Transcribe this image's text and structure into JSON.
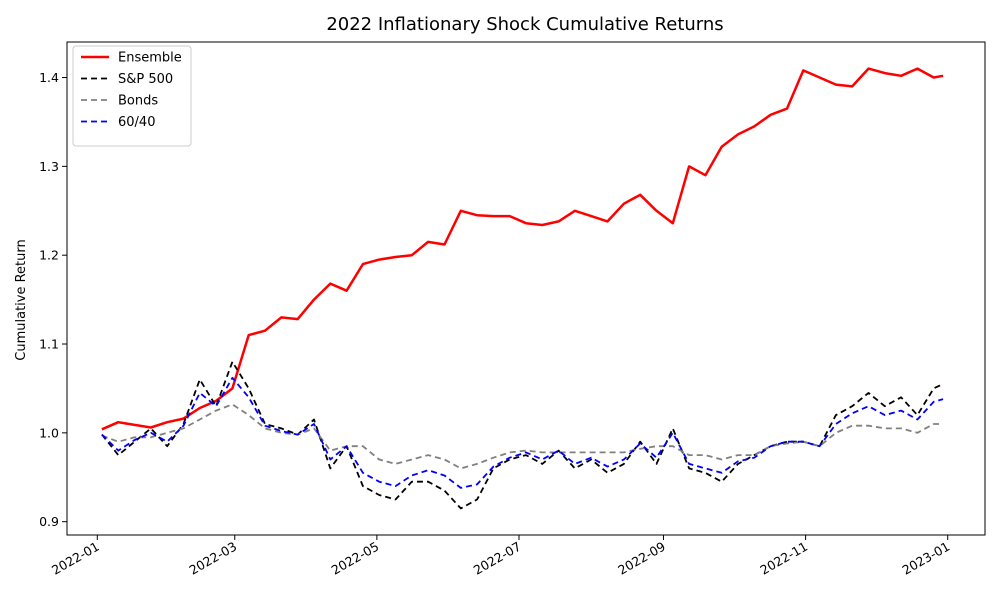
{
  "chart_data": {
    "type": "line",
    "title": "2022 Inflationary Shock Cumulative Returns",
    "xlabel": "",
    "ylabel": "Cumulative Return",
    "ylim": [
      0.885,
      1.44
    ],
    "xlim": [
      "2021-12-19",
      "2023-01-17"
    ],
    "grid": false,
    "legend_position": "upper-left",
    "x_ticks": [
      "2022-01",
      "2022-03",
      "2022-05",
      "2022-07",
      "2022-09",
      "2022-11",
      "2023-01"
    ],
    "y_ticks": [
      0.9,
      1.0,
      1.1,
      1.2,
      1.3,
      1.4
    ],
    "x": [
      "2022-01-03",
      "2022-01-10",
      "2022-01-17",
      "2022-01-24",
      "2022-01-31",
      "2022-02-07",
      "2022-02-14",
      "2022-02-21",
      "2022-02-28",
      "2022-03-07",
      "2022-03-14",
      "2022-03-21",
      "2022-03-28",
      "2022-04-04",
      "2022-04-11",
      "2022-04-18",
      "2022-04-25",
      "2022-05-02",
      "2022-05-09",
      "2022-05-16",
      "2022-05-23",
      "2022-05-30",
      "2022-06-06",
      "2022-06-13",
      "2022-06-20",
      "2022-06-27",
      "2022-07-04",
      "2022-07-11",
      "2022-07-18",
      "2022-07-25",
      "2022-08-01",
      "2022-08-08",
      "2022-08-15",
      "2022-08-22",
      "2022-08-29",
      "2022-09-05",
      "2022-09-12",
      "2022-09-19",
      "2022-09-26",
      "2022-10-03",
      "2022-10-10",
      "2022-10-17",
      "2022-10-24",
      "2022-10-31",
      "2022-11-07",
      "2022-11-14",
      "2022-11-21",
      "2022-11-28",
      "2022-12-05",
      "2022-12-12",
      "2022-12-19",
      "2022-12-26",
      "2022-12-30"
    ],
    "series": [
      {
        "name": "Ensemble",
        "color": "#ff0000",
        "dash": "solid",
        "width": 2.5,
        "values": [
          1.004,
          1.012,
          1.009,
          1.006,
          1.012,
          1.016,
          1.028,
          1.036,
          1.05,
          1.11,
          1.115,
          1.13,
          1.128,
          1.15,
          1.168,
          1.16,
          1.19,
          1.195,
          1.198,
          1.2,
          1.215,
          1.212,
          1.25,
          1.245,
          1.244,
          1.244,
          1.236,
          1.234,
          1.238,
          1.25,
          1.244,
          1.238,
          1.258,
          1.268,
          1.25,
          1.236,
          1.3,
          1.29,
          1.322,
          1.336,
          1.345,
          1.358,
          1.365,
          1.408,
          1.4,
          1.392,
          1.39,
          1.41,
          1.405,
          1.402,
          1.41,
          1.4,
          1.402
        ]
      },
      {
        "name": "S&P 500",
        "color": "#000000",
        "dash": "6,4",
        "width": 1.8,
        "values": [
          0.998,
          0.975,
          0.99,
          1.005,
          0.985,
          1.01,
          1.06,
          1.03,
          1.08,
          1.05,
          1.01,
          1.005,
          0.998,
          1.015,
          0.96,
          0.985,
          0.94,
          0.93,
          0.925,
          0.945,
          0.945,
          0.935,
          0.915,
          0.925,
          0.96,
          0.97,
          0.975,
          0.965,
          0.98,
          0.96,
          0.97,
          0.955,
          0.965,
          0.99,
          0.965,
          1.005,
          0.96,
          0.955,
          0.945,
          0.965,
          0.975,
          0.985,
          0.99,
          0.99,
          0.985,
          1.02,
          1.03,
          1.045,
          1.03,
          1.04,
          1.02,
          1.05,
          1.055
        ]
      },
      {
        "name": "Bonds",
        "color": "#808080",
        "dash": "6,4",
        "width": 1.8,
        "values": [
          0.997,
          0.99,
          0.995,
          0.995,
          1.0,
          1.005,
          1.015,
          1.025,
          1.032,
          1.02,
          1.005,
          1.0,
          0.998,
          1.005,
          0.98,
          0.985,
          0.985,
          0.97,
          0.965,
          0.97,
          0.975,
          0.97,
          0.96,
          0.965,
          0.972,
          0.978,
          0.98,
          0.978,
          0.978,
          0.978,
          0.978,
          0.978,
          0.978,
          0.982,
          0.985,
          0.985,
          0.975,
          0.975,
          0.97,
          0.975,
          0.975,
          0.985,
          0.988,
          0.99,
          0.985,
          1.0,
          1.008,
          1.008,
          1.005,
          1.005,
          1.0,
          1.01,
          1.01
        ]
      },
      {
        "name": "60/40",
        "color": "#0000ff",
        "dash": "6,4",
        "width": 1.8,
        "values": [
          0.998,
          0.98,
          0.992,
          1.0,
          0.99,
          1.008,
          1.045,
          1.03,
          1.062,
          1.04,
          1.008,
          1.002,
          0.998,
          1.01,
          0.97,
          0.985,
          0.955,
          0.945,
          0.94,
          0.952,
          0.958,
          0.952,
          0.938,
          0.942,
          0.962,
          0.972,
          0.978,
          0.97,
          0.98,
          0.965,
          0.972,
          0.962,
          0.97,
          0.988,
          0.972,
          1.0,
          0.965,
          0.96,
          0.955,
          0.968,
          0.972,
          0.985,
          0.99,
          0.99,
          0.985,
          1.01,
          1.022,
          1.03,
          1.02,
          1.025,
          1.015,
          1.035,
          1.038
        ]
      }
    ]
  }
}
